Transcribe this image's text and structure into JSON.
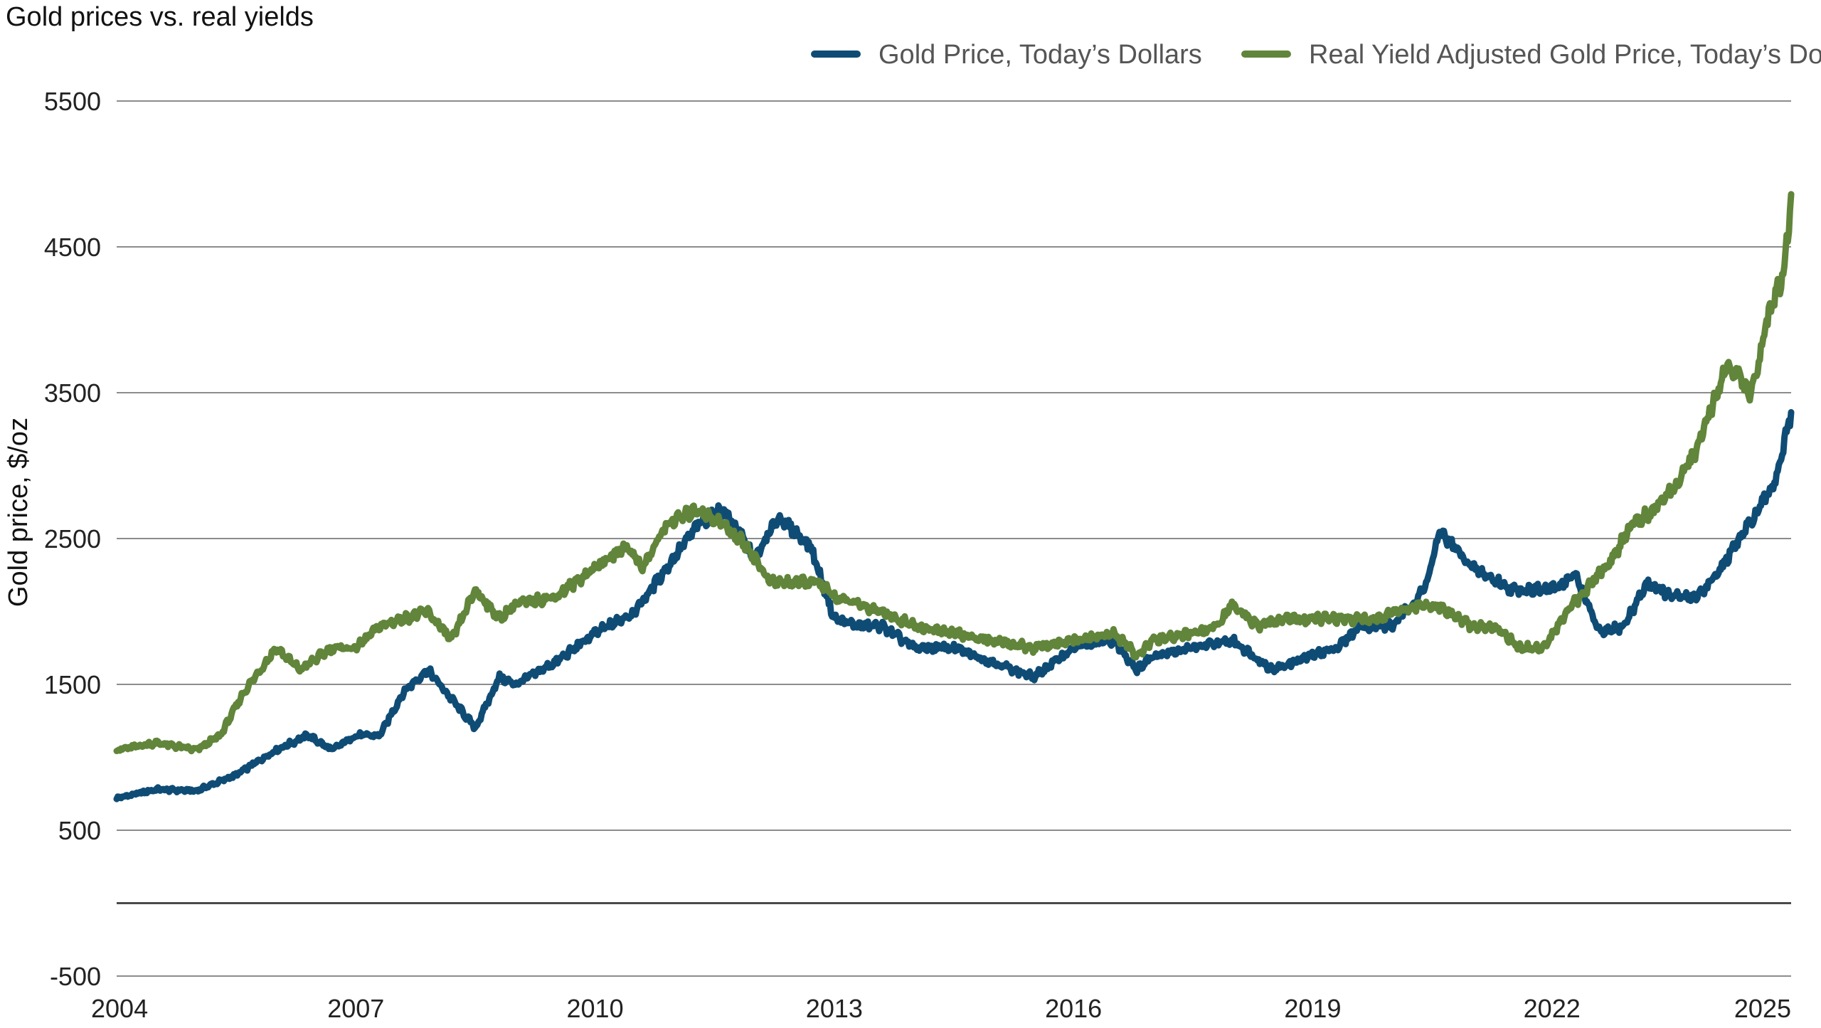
{
  "chart_data": {
    "type": "line",
    "title": "Gold prices vs. real yields",
    "xlabel": "",
    "ylabel": "Gold price, $/oz",
    "ylim": [
      -500,
      5500
    ],
    "yticks": [
      "5500",
      "4500",
      "3500",
      "2500",
      "1500",
      "500",
      "-500"
    ],
    "xlim": [
      2004,
      2025
    ],
    "xticks": [
      "2004",
      "2007",
      "2010",
      "2013",
      "2016",
      "2019",
      "2022",
      "2025"
    ],
    "grid": "horizontal",
    "legend_position": "top-right",
    "series": [
      {
        "name": "Gold Price, Today’s Dollars",
        "color": "#0f4c75",
        "x": [
          2004.0,
          2004.5,
          2005.0,
          2005.5,
          2006.0,
          2006.4,
          2006.7,
          2007.0,
          2007.3,
          2007.6,
          2007.9,
          2008.2,
          2008.5,
          2008.8,
          2009.0,
          2009.5,
          2010.0,
          2010.5,
          2010.9,
          2011.3,
          2011.6,
          2011.8,
          2012.0,
          2012.3,
          2012.7,
          2013.0,
          2013.3,
          2013.6,
          2014.0,
          2014.5,
          2015.0,
          2015.5,
          2016.0,
          2016.5,
          2016.8,
          2017.0,
          2017.5,
          2018.0,
          2018.5,
          2019.0,
          2019.3,
          2019.6,
          2020.0,
          2020.4,
          2020.6,
          2021.0,
          2021.5,
          2022.0,
          2022.3,
          2022.6,
          2022.9,
          2023.2,
          2023.5,
          2023.8,
          2024.0,
          2024.3,
          2024.6,
          2024.8,
          2025.0
        ],
        "values": [
          720,
          780,
          770,
          880,
          1050,
          1150,
          1050,
          1150,
          1150,
          1450,
          1600,
          1400,
          1200,
          1550,
          1500,
          1650,
          1850,
          2000,
          2300,
          2600,
          2700,
          2550,
          2350,
          2650,
          2450,
          1950,
          1900,
          1900,
          1750,
          1750,
          1650,
          1550,
          1750,
          1800,
          1600,
          1700,
          1750,
          1800,
          1600,
          1700,
          1750,
          1900,
          1900,
          2150,
          2550,
          2300,
          2150,
          2150,
          2250,
          1850,
          1900,
          2200,
          2100,
          2100,
          2200,
          2450,
          2700,
          2900,
          3350
        ]
      },
      {
        "name": "Real Yield Adjusted Gold Price, Today’s Dollars",
        "color": "#61853a",
        "x": [
          2004.0,
          2004.5,
          2005.0,
          2005.3,
          2005.6,
          2005.8,
          2006.0,
          2006.3,
          2006.7,
          2007.0,
          2007.3,
          2007.6,
          2007.9,
          2008.2,
          2008.5,
          2008.8,
          2009.0,
          2009.5,
          2010.0,
          2010.4,
          2010.6,
          2010.9,
          2011.3,
          2011.6,
          2011.9,
          2012.2,
          2012.5,
          2012.8,
          2013.0,
          2013.3,
          2013.6,
          2014.0,
          2014.5,
          2015.0,
          2015.5,
          2016.0,
          2016.5,
          2016.8,
          2017.0,
          2017.5,
          2017.8,
          2018.0,
          2018.3,
          2018.7,
          2019.0,
          2019.4,
          2019.8,
          2020.0,
          2020.5,
          2021.0,
          2021.3,
          2021.6,
          2021.9,
          2022.2,
          2022.5,
          2022.8,
          2023.0,
          2023.3,
          2023.6,
          2023.8,
          2024.0,
          2024.2,
          2024.5,
          2024.7,
          2024.9,
          2025.0
        ],
        "values": [
          1050,
          1100,
          1050,
          1150,
          1450,
          1600,
          1750,
          1600,
          1750,
          1750,
          1900,
          1950,
          2000,
          1800,
          2150,
          1950,
          2050,
          2100,
          2300,
          2450,
          2300,
          2600,
          2700,
          2600,
          2450,
          2200,
          2200,
          2200,
          2100,
          2050,
          2000,
          1900,
          1850,
          1800,
          1750,
          1800,
          1850,
          1700,
          1800,
          1850,
          1900,
          2050,
          1900,
          1950,
          1950,
          1950,
          1950,
          2000,
          2050,
          1900,
          1900,
          1750,
          1750,
          2000,
          2200,
          2400,
          2600,
          2700,
          2900,
          3100,
          3400,
          3700,
          3500,
          4000,
          4300,
          4800
        ]
      }
    ]
  }
}
